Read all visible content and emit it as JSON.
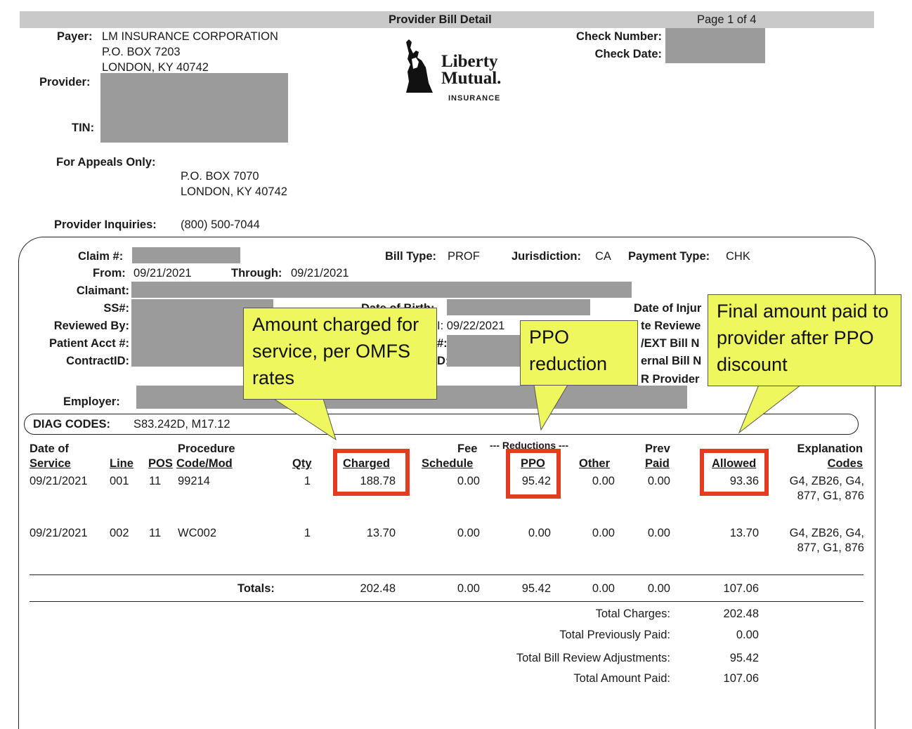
{
  "header": {
    "title": "Provider Bill Detail",
    "page": "Page 1 of 4"
  },
  "payer": {
    "label": "Payer:",
    "name": "LM INSURANCE CORPORATION",
    "address1": "P.O. BOX 7203",
    "address2": "LONDON, KY 40742"
  },
  "provider_label": "Provider:",
  "tin_label": "TIN:",
  "appeals": {
    "label": "For Appeals Only:",
    "address1": "P.O. BOX 7070",
    "address2": "LONDON, KY 40742"
  },
  "inquiries": {
    "label": "Provider Inquiries:",
    "phone": "(800) 500-7044"
  },
  "check": {
    "number_label": "Check Number:",
    "date_label": "Check Date:"
  },
  "logo": {
    "line1": "Liberty",
    "line2": "Mutual.",
    "line3": "INSURANCE"
  },
  "claim": {
    "claim_label": "Claim #:",
    "bill_type_label": "Bill Type:",
    "bill_type": "PROF",
    "jurisdiction_label": "Jurisdiction:",
    "jurisdiction": "CA",
    "payment_type_label": "Payment Type:",
    "payment_type": "CHK",
    "from_label": "From:",
    "from": "09/21/2021",
    "through_label": "Through:",
    "through": "09/21/2021",
    "claimant_label": "Claimant:",
    "ss_label": "SS#:",
    "reviewed_by_label": "Reviewed By:",
    "patient_acct_label": "Patient Acct #:",
    "contract_label": "ContractID:",
    "employer_label": "Employer:",
    "dob_partial": "Date of Birth:",
    "mid_date_partial": "I: 09/22/2021",
    "mid_hash_partial": "#:",
    "mid_d_partial": "D:",
    "right_labels": [
      "Date of Injur",
      "te Reviewe",
      "/EXT Bill N",
      "ernal Bill N",
      "R Provider"
    ]
  },
  "diag": {
    "label": "DIAG CODES:",
    "codes": "S83.242D, M17.12"
  },
  "table": {
    "headers": {
      "date_top": "Date of",
      "date": "Service",
      "line": "Line",
      "pos": "POS",
      "proc_top": "Procedure",
      "proc": "Code/Mod",
      "qty": "Qty",
      "charged": "Charged",
      "fee_top": "Fee",
      "fee": "Schedule",
      "reductions": "--- Reductions ---",
      "ppo": "PPO",
      "other": "Other",
      "prev_top": "Prev",
      "prev": "Paid",
      "allowed": "Allowed",
      "expl_top": "Explanation",
      "expl": "Codes"
    },
    "rows": [
      {
        "date": "09/21/2021",
        "line": "001",
        "pos": "11",
        "code": "99214",
        "qty": "1",
        "charged": "188.78",
        "fee": "0.00",
        "ppo": "95.42",
        "other": "0.00",
        "prev": "0.00",
        "allowed": "93.36",
        "expl1": "G4, ZB26, G4,",
        "expl2": "877, G1, 876"
      },
      {
        "date": "09/21/2021",
        "line": "002",
        "pos": "11",
        "code": "WC002",
        "qty": "1",
        "charged": "13.70",
        "fee": "0.00",
        "ppo": "0.00",
        "other": "0.00",
        "prev": "0.00",
        "allowed": "13.70",
        "expl1": "G4, ZB26, G4,",
        "expl2": "877, G1, 876"
      }
    ],
    "totals": {
      "label": "Totals:",
      "charged": "202.48",
      "fee": "0.00",
      "ppo": "95.42",
      "other": "0.00",
      "prev": "0.00",
      "allowed": "107.06"
    }
  },
  "summary": [
    {
      "label": "Total Charges:",
      "value": "202.48"
    },
    {
      "label": "Total Previously Paid:",
      "value": "0.00"
    },
    {
      "label": "Total Bill Review Adjustments:",
      "value": "95.42"
    },
    {
      "label": "Total Amount Paid:",
      "value": "107.06"
    }
  ],
  "callouts": {
    "charged": "Amount charged for service, per OMFS rates",
    "ppo": "PPO reduction",
    "allowed": "Final amount paid to provider after PPO discount"
  },
  "colors": {
    "callout_fill": "#eef85e",
    "highlight_border": "#e23c22",
    "redaction": "#9b9b9b"
  }
}
